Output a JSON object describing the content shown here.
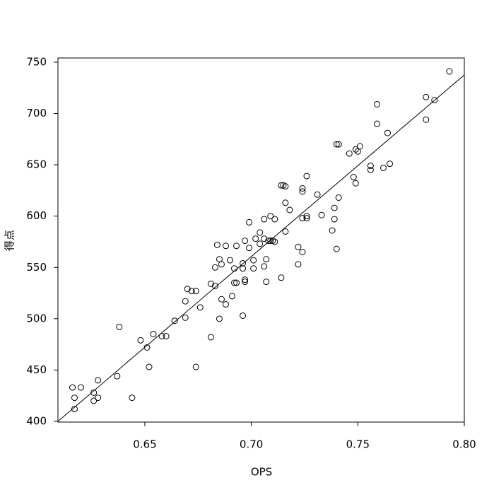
{
  "chart_data": {
    "type": "scatter",
    "xlabel": "OPS",
    "ylabel": "得点",
    "x": [
      0.616,
      0.617,
      0.617,
      0.62,
      0.626,
      0.626,
      0.628,
      0.628,
      0.637,
      0.638,
      0.644,
      0.648,
      0.651,
      0.652,
      0.654,
      0.658,
      0.66,
      0.664,
      0.669,
      0.669,
      0.67,
      0.672,
      0.674,
      0.674,
      0.676,
      0.681,
      0.681,
      0.683,
      0.683,
      0.684,
      0.685,
      0.685,
      0.686,
      0.686,
      0.688,
      0.688,
      0.69,
      0.691,
      0.692,
      0.692,
      0.693,
      0.693,
      0.696,
      0.696,
      0.696,
      0.697,
      0.697,
      0.697,
      0.699,
      0.699,
      0.701,
      0.701,
      0.702,
      0.704,
      0.704,
      0.706,
      0.706,
      0.706,
      0.707,
      0.707,
      0.708,
      0.709,
      0.709,
      0.71,
      0.711,
      0.711,
      0.714,
      0.714,
      0.715,
      0.716,
      0.716,
      0.716,
      0.718,
      0.722,
      0.722,
      0.724,
      0.724,
      0.724,
      0.724,
      0.726,
      0.726,
      0.726,
      0.731,
      0.733,
      0.738,
      0.739,
      0.739,
      0.74,
      0.74,
      0.741,
      0.741,
      0.746,
      0.748,
      0.749,
      0.749,
      0.75,
      0.751,
      0.756,
      0.756,
      0.759,
      0.759,
      0.762,
      0.764,
      0.765,
      0.782,
      0.782,
      0.786,
      0.793
    ],
    "y": [
      433,
      423,
      412,
      433,
      428,
      420,
      440,
      423,
      444,
      492,
      423,
      479,
      472,
      453,
      485,
      483,
      483,
      498,
      517,
      501,
      529,
      527,
      527,
      453,
      511,
      482,
      534,
      532,
      550,
      572,
      558,
      500,
      553,
      519,
      514,
      571,
      557,
      522,
      549,
      535,
      535,
      571,
      554,
      549,
      503,
      538,
      536,
      576,
      594,
      569,
      557,
      549,
      578,
      584,
      573,
      597,
      578,
      551,
      558,
      536,
      576,
      600,
      576,
      576,
      597,
      575,
      540,
      630,
      630,
      629,
      613,
      585,
      606,
      570,
      553,
      627,
      624,
      565,
      598,
      639,
      598,
      600,
      621,
      601,
      586,
      608,
      597,
      568,
      670,
      670,
      618,
      661,
      638,
      665,
      632,
      663,
      668,
      649,
      645,
      709,
      690,
      647,
      681,
      651,
      716,
      694,
      713,
      741
    ],
    "xlim": [
      0.6092,
      0.8
    ],
    "ylim": [
      399.3,
      754.1
    ],
    "xticks": [
      0.65,
      {
        "value": 0.7,
        "label": "0.70"
      },
      0.75,
      {
        "value": 0.8,
        "label": "0.80"
      }
    ],
    "yticks": [
      400,
      450,
      500,
      550,
      600,
      650,
      700,
      750
    ],
    "trend_line": {
      "x": [
        0.6092,
        0.8
      ],
      "y": [
        400,
        737.6
      ]
    }
  }
}
